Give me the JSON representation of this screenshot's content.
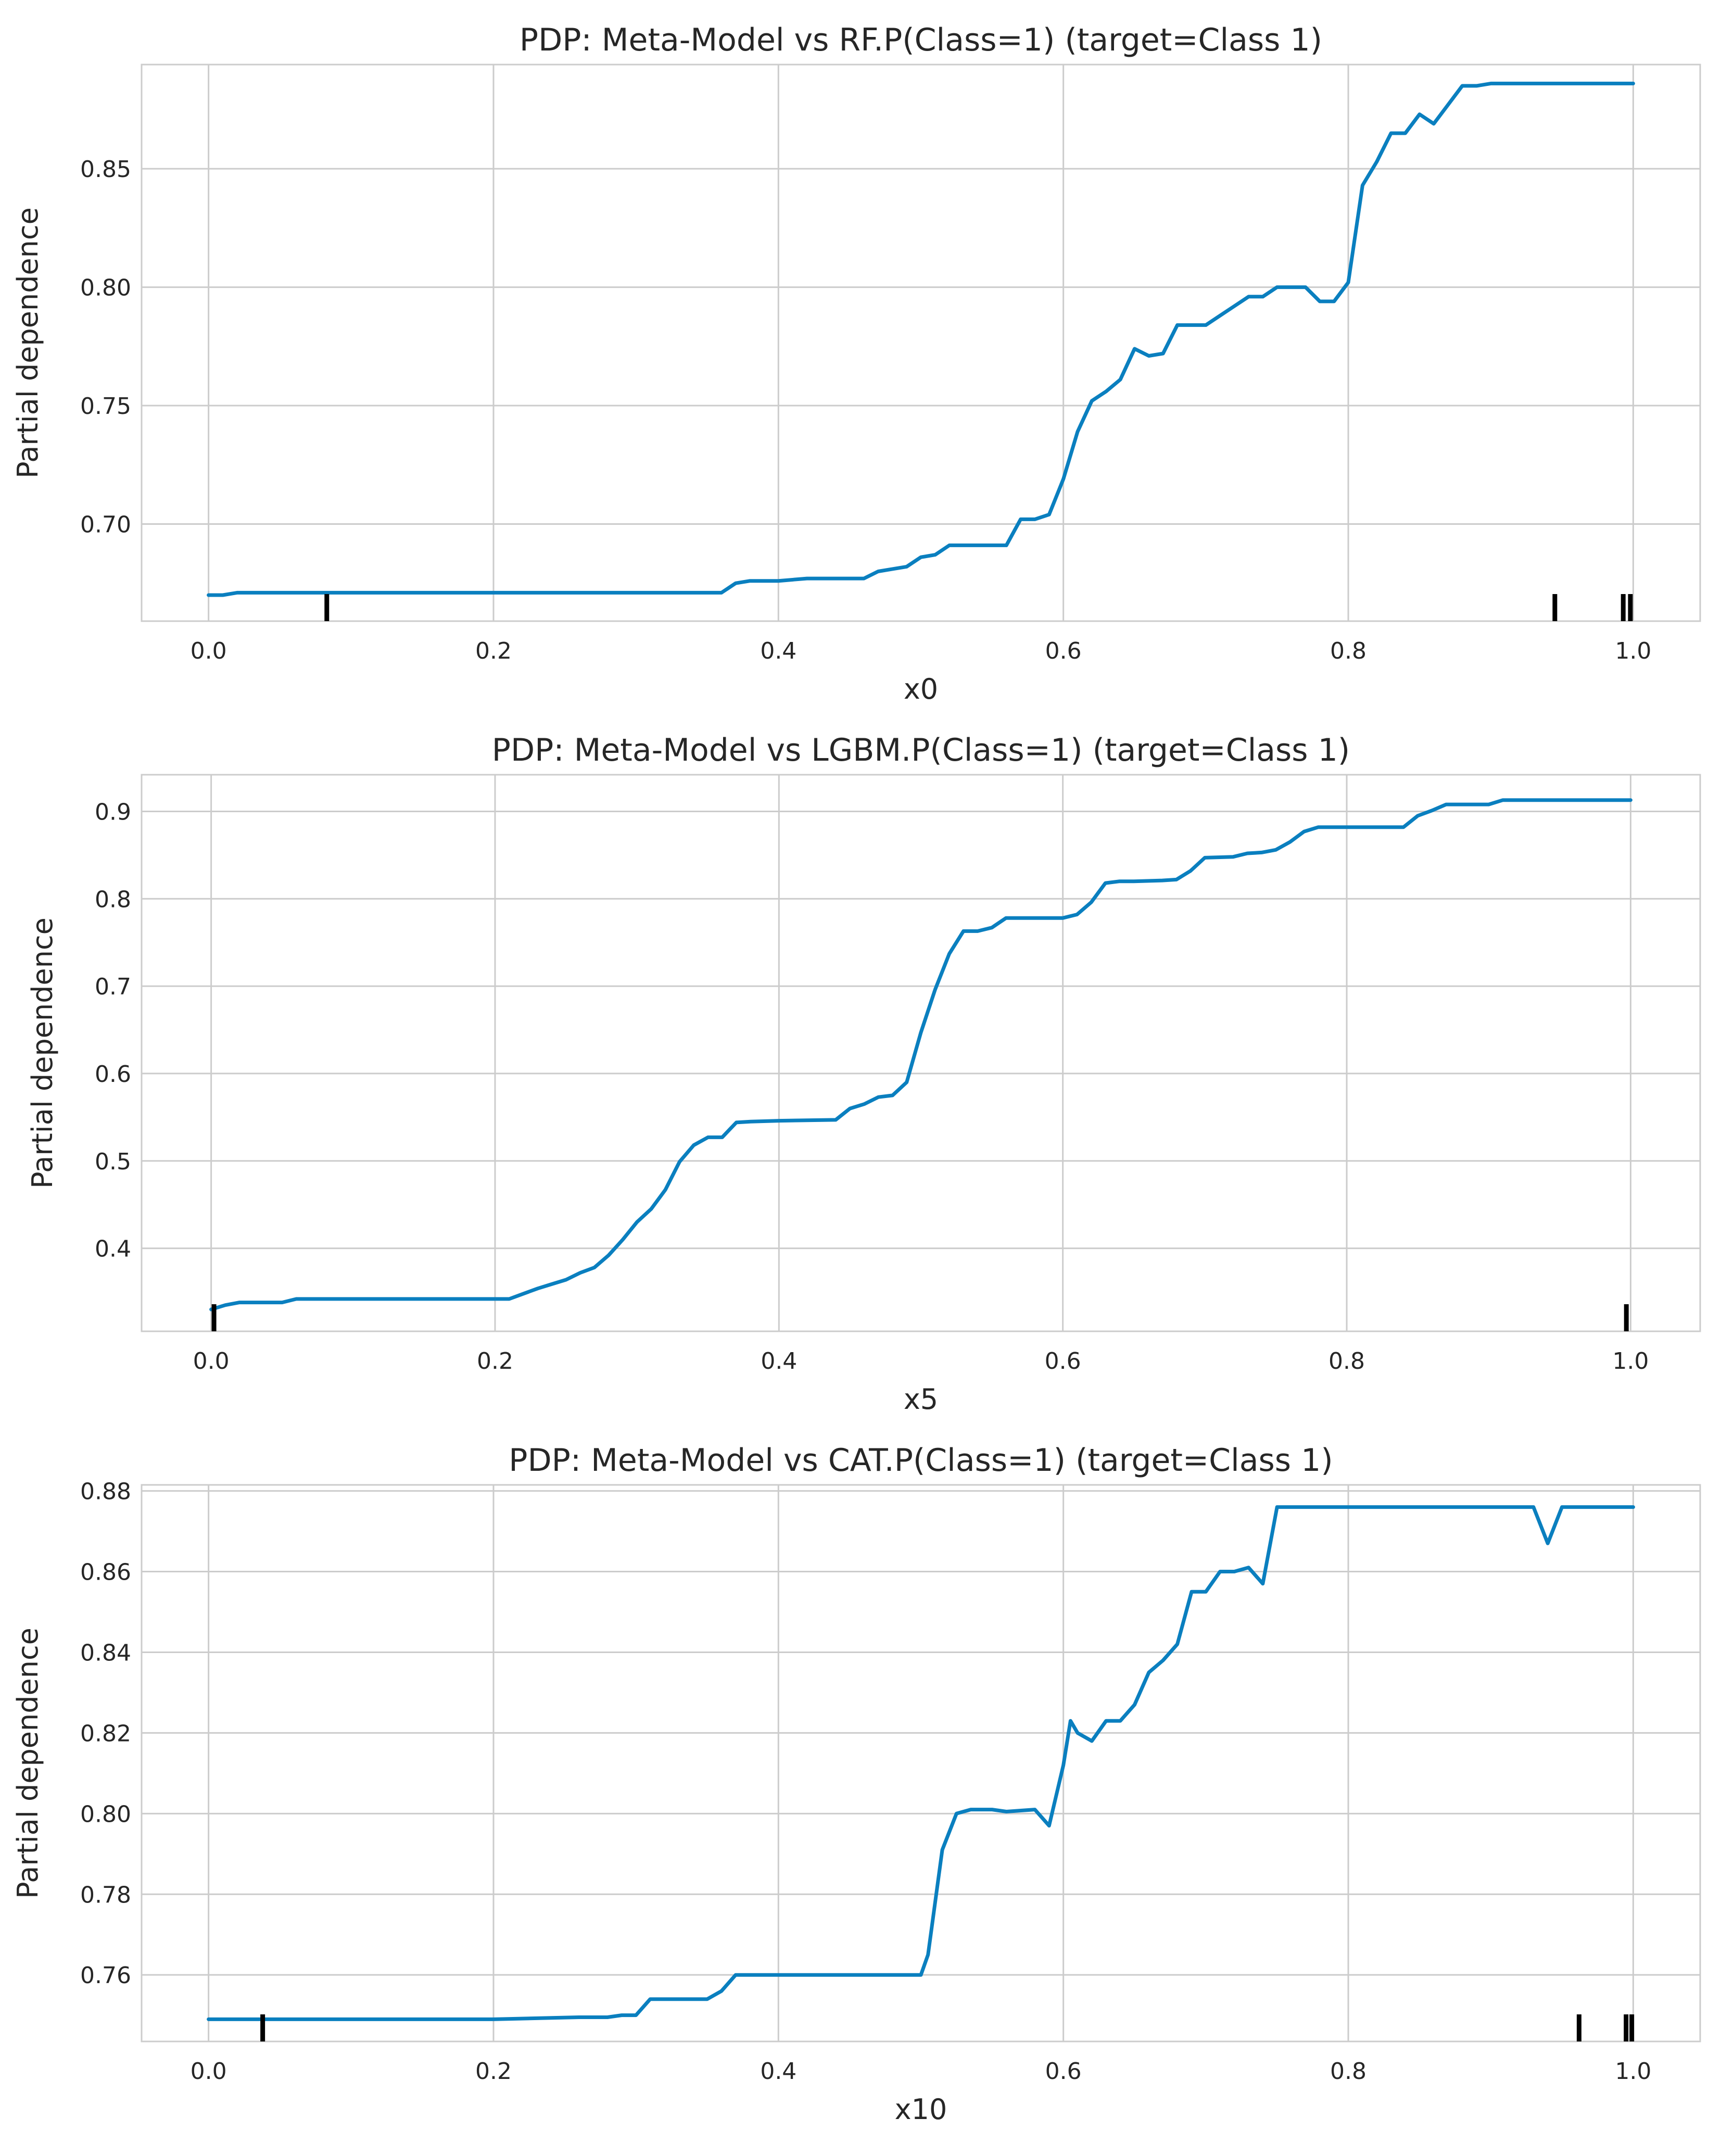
{
  "chart_data": [
    {
      "type": "line",
      "title": "PDP: Meta-Model vs RF.P(Class=1) (target=Class 1)",
      "xlabel": "x0",
      "ylabel": "Partial dependence",
      "xlim": [
        -0.047,
        1.047
      ],
      "ylim": [
        0.659,
        0.894
      ],
      "xticks": [
        0.0,
        0.2,
        0.4,
        0.6,
        0.8,
        1.0
      ],
      "xtick_labels": [
        "0.0",
        "0.2",
        "0.4",
        "0.6",
        "0.8",
        "1.0"
      ],
      "yticks": [
        0.7,
        0.75,
        0.8,
        0.85
      ],
      "ytick_labels": [
        "0.70",
        "0.75",
        "0.80",
        "0.85"
      ],
      "grid": true,
      "color": "#0a7fbf",
      "rug": [
        0.083,
        0.945,
        0.993,
        0.998
      ],
      "series": [
        {
          "name": "Partial dependence",
          "x": [
            0.0,
            0.01,
            0.02,
            0.03,
            0.05,
            0.08,
            0.1,
            0.2,
            0.3,
            0.35,
            0.36,
            0.37,
            0.38,
            0.4,
            0.42,
            0.45,
            0.46,
            0.47,
            0.48,
            0.49,
            0.5,
            0.51,
            0.52,
            0.53,
            0.55,
            0.56,
            0.57,
            0.58,
            0.59,
            0.6,
            0.61,
            0.62,
            0.63,
            0.64,
            0.65,
            0.66,
            0.67,
            0.68,
            0.69,
            0.7,
            0.71,
            0.72,
            0.73,
            0.74,
            0.75,
            0.76,
            0.77,
            0.78,
            0.79,
            0.8,
            0.81,
            0.82,
            0.83,
            0.84,
            0.85,
            0.86,
            0.87,
            0.88,
            0.89,
            0.9,
            0.95,
            1.0
          ],
          "values": [
            0.67,
            0.67,
            0.671,
            0.671,
            0.671,
            0.671,
            0.671,
            0.671,
            0.671,
            0.671,
            0.671,
            0.675,
            0.676,
            0.676,
            0.677,
            0.677,
            0.677,
            0.68,
            0.681,
            0.682,
            0.686,
            0.687,
            0.691,
            0.691,
            0.691,
            0.691,
            0.702,
            0.702,
            0.704,
            0.719,
            0.739,
            0.752,
            0.756,
            0.761,
            0.774,
            0.771,
            0.772,
            0.784,
            0.784,
            0.784,
            0.788,
            0.792,
            0.796,
            0.796,
            0.8,
            0.8,
            0.8,
            0.794,
            0.794,
            0.802,
            0.843,
            0.853,
            0.865,
            0.865,
            0.873,
            0.869,
            0.877,
            0.885,
            0.885,
            0.886,
            0.886,
            0.886
          ]
        }
      ]
    },
    {
      "type": "line",
      "title": "PDP: Meta-Model vs LGBM.P(Class=1) (target=Class 1)",
      "xlabel": "x5",
      "ylabel": "Partial dependence",
      "xlim": [
        -0.049,
        1.049
      ],
      "ylim": [
        0.305,
        0.942
      ],
      "xticks": [
        0.0,
        0.2,
        0.4,
        0.6,
        0.8,
        1.0
      ],
      "xtick_labels": [
        "0.0",
        "0.2",
        "0.4",
        "0.6",
        "0.8",
        "1.0"
      ],
      "yticks": [
        0.4,
        0.5,
        0.6,
        0.7,
        0.8,
        0.9
      ],
      "ytick_labels": [
        "0.4",
        "0.5",
        "0.6",
        "0.7",
        "0.8",
        "0.9"
      ],
      "grid": true,
      "color": "#0a7fbf",
      "rug": [
        0.002,
        0.997
      ],
      "series": [
        {
          "name": "Partial dependence",
          "x": [
            0.0,
            0.01,
            0.02,
            0.05,
            0.06,
            0.1,
            0.2,
            0.21,
            0.22,
            0.23,
            0.24,
            0.25,
            0.26,
            0.27,
            0.28,
            0.29,
            0.3,
            0.31,
            0.32,
            0.33,
            0.34,
            0.35,
            0.36,
            0.37,
            0.38,
            0.4,
            0.44,
            0.45,
            0.46,
            0.47,
            0.48,
            0.49,
            0.5,
            0.51,
            0.52,
            0.53,
            0.54,
            0.55,
            0.56,
            0.6,
            0.61,
            0.62,
            0.63,
            0.64,
            0.65,
            0.67,
            0.68,
            0.69,
            0.7,
            0.72,
            0.73,
            0.74,
            0.75,
            0.76,
            0.77,
            0.78,
            0.8,
            0.84,
            0.85,
            0.86,
            0.87,
            0.88,
            0.9,
            0.91,
            0.95,
            1.0
          ],
          "values": [
            0.33,
            0.335,
            0.338,
            0.338,
            0.342,
            0.342,
            0.342,
            0.342,
            0.348,
            0.354,
            0.359,
            0.364,
            0.372,
            0.378,
            0.392,
            0.41,
            0.43,
            0.445,
            0.467,
            0.499,
            0.518,
            0.527,
            0.527,
            0.544,
            0.545,
            0.546,
            0.547,
            0.56,
            0.565,
            0.573,
            0.575,
            0.59,
            0.647,
            0.696,
            0.737,
            0.763,
            0.763,
            0.767,
            0.778,
            0.778,
            0.782,
            0.796,
            0.818,
            0.82,
            0.82,
            0.821,
            0.822,
            0.832,
            0.847,
            0.848,
            0.852,
            0.853,
            0.856,
            0.865,
            0.877,
            0.882,
            0.882,
            0.882,
            0.895,
            0.901,
            0.908,
            0.908,
            0.908,
            0.913,
            0.913,
            0.913
          ]
        }
      ]
    },
    {
      "type": "line",
      "title": "PDP: Meta-Model vs CAT.P(Class=1) (target=Class 1)",
      "xlabel": "x10",
      "ylabel": "Partial dependence",
      "xlim": [
        -0.047,
        1.047
      ],
      "ylim": [
        0.7435,
        0.8815
      ],
      "xticks": [
        0.0,
        0.2,
        0.4,
        0.6,
        0.8,
        1.0
      ],
      "xtick_labels": [
        "0.0",
        "0.2",
        "0.4",
        "0.6",
        "0.8",
        "1.0"
      ],
      "yticks": [
        0.76,
        0.78,
        0.8,
        0.82,
        0.84,
        0.86,
        0.88
      ],
      "ytick_labels": [
        "0.76",
        "0.78",
        "0.80",
        "0.82",
        "0.84",
        "0.86",
        "0.88"
      ],
      "grid": true,
      "color": "#0a7fbf",
      "rug": [
        0.038,
        0.962,
        0.995,
        0.999
      ],
      "series": [
        {
          "name": "Partial dependence",
          "x": [
            0.0,
            0.1,
            0.2,
            0.26,
            0.27,
            0.28,
            0.29,
            0.3,
            0.31,
            0.35,
            0.36,
            0.37,
            0.38,
            0.45,
            0.46,
            0.47,
            0.48,
            0.49,
            0.5,
            0.505,
            0.515,
            0.525,
            0.535,
            0.55,
            0.56,
            0.58,
            0.59,
            0.6,
            0.605,
            0.61,
            0.62,
            0.63,
            0.64,
            0.65,
            0.66,
            0.67,
            0.68,
            0.69,
            0.7,
            0.71,
            0.72,
            0.73,
            0.74,
            0.75,
            0.8,
            0.9,
            0.92,
            0.93,
            0.94,
            0.95,
            1.0
          ],
          "values": [
            0.749,
            0.749,
            0.749,
            0.7495,
            0.7495,
            0.7495,
            0.75,
            0.75,
            0.754,
            0.754,
            0.756,
            0.76,
            0.76,
            0.76,
            0.76,
            0.76,
            0.76,
            0.76,
            0.76,
            0.765,
            0.791,
            0.8,
            0.801,
            0.801,
            0.8005,
            0.801,
            0.797,
            0.812,
            0.823,
            0.82,
            0.818,
            0.823,
            0.823,
            0.827,
            0.835,
            0.838,
            0.842,
            0.855,
            0.855,
            0.86,
            0.86,
            0.861,
            0.857,
            0.876,
            0.876,
            0.876,
            0.876,
            0.876,
            0.867,
            0.876,
            0.876
          ]
        }
      ]
    }
  ]
}
